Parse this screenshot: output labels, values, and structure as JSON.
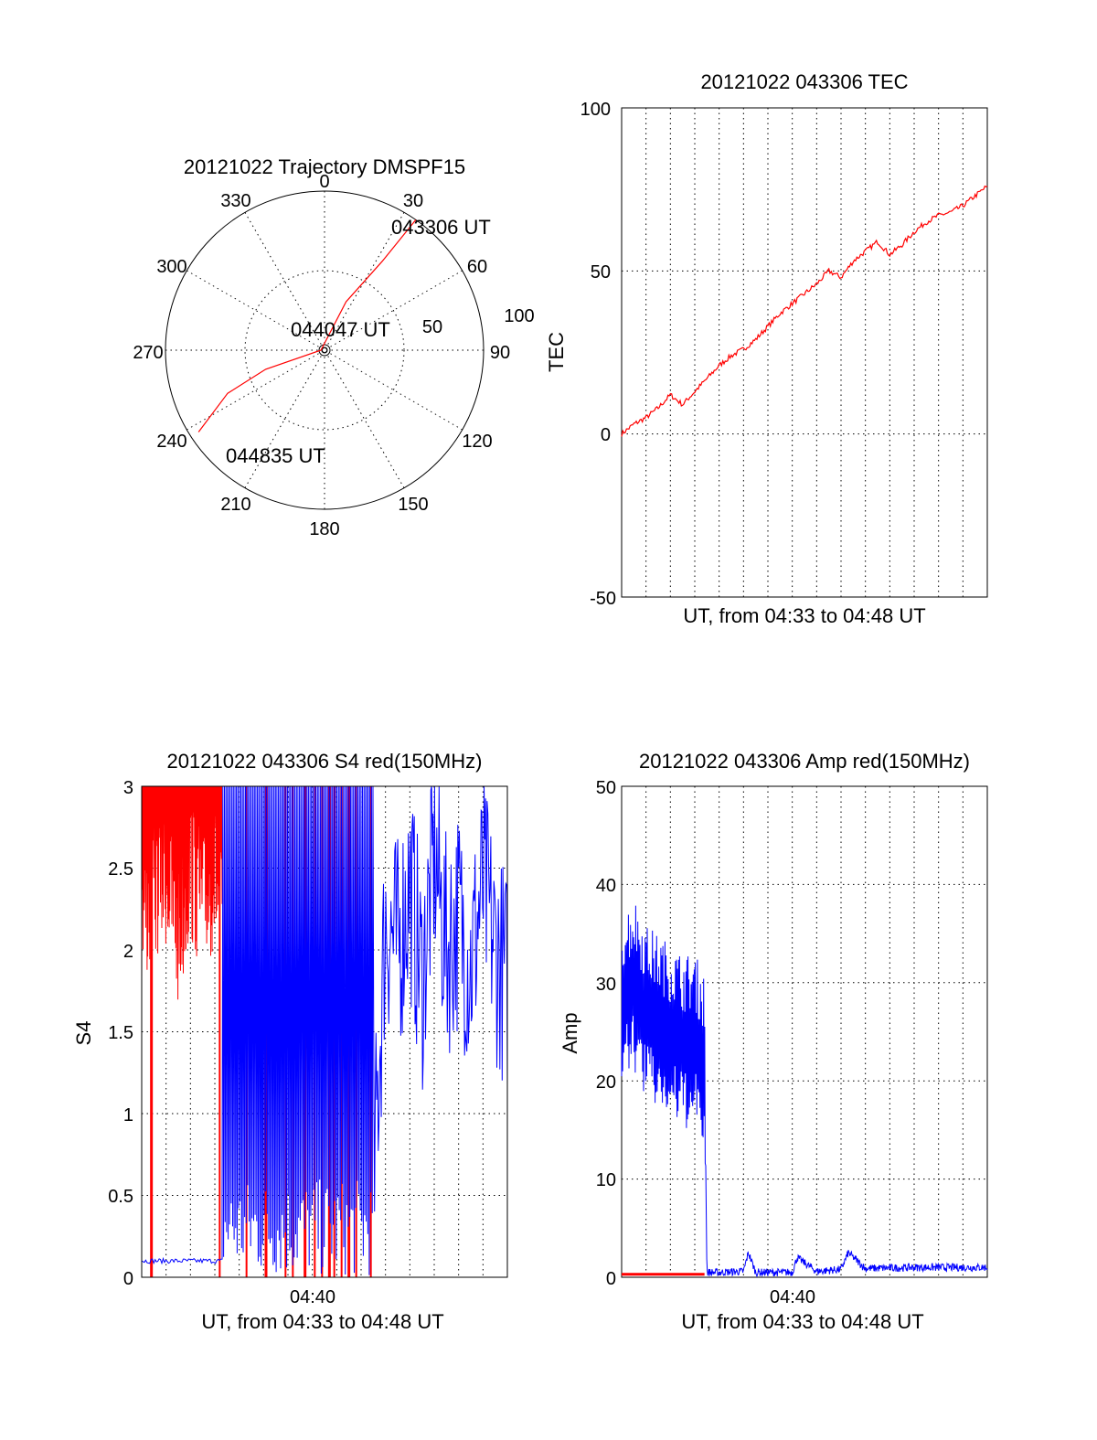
{
  "colors": {
    "red": "#ff0000",
    "blue": "#0000ff",
    "ink": "#000000"
  },
  "polar": {
    "title": "20121022 Trajectory DMSPF15",
    "azimuth_labels": [
      "0",
      "30",
      "60",
      "90",
      "120",
      "150",
      "180",
      "210",
      "240",
      "270",
      "300",
      "330"
    ],
    "elevation_labels": [
      "50",
      "100"
    ],
    "start_label": "043306 UT",
    "mid_label": "044047 UT",
    "end_label": "044835 UT"
  },
  "tec": {
    "title": "20121022 043306 TEC",
    "ylabel": "TEC",
    "xlabel": "UT, from 04:33 to 04:48 UT",
    "y_ticks": [
      "100",
      "50",
      "0",
      "-50"
    ]
  },
  "s4": {
    "title": "20121022 043306 S4 red(150MHz)",
    "ylabel": "S4",
    "xlabel": "UT, from 04:33 to 04:48 UT",
    "x_tick": "04:40",
    "y_ticks": [
      "3",
      "2.5",
      "2",
      "1.5",
      "1",
      "0.5",
      "0"
    ]
  },
  "amp": {
    "title": "20121022 043306 Amp red(150MHz)",
    "ylabel": "Amp",
    "xlabel": "UT, from 04:33 to 04:48 UT",
    "x_tick": "04:40",
    "y_ticks": [
      "50",
      "40",
      "30",
      "20",
      "10",
      "0"
    ]
  },
  "chart_data": [
    {
      "type": "line",
      "title": "20121022 Trajectory DMSPF15",
      "subtype": "polar",
      "r_axis": "elevation (90 at center, 0 at rim)",
      "series": [
        {
          "name": "trajectory",
          "color": "red",
          "points": [
            {
              "az": 35,
              "el": 0
            },
            {
              "az": 33,
              "el": 30
            },
            {
              "az": 24,
              "el": 60
            },
            {
              "az": 270,
              "el": 88
            },
            {
              "az": 252,
              "el": 55
            },
            {
              "az": 246,
              "el": 30
            },
            {
              "az": 237,
              "el": 5
            }
          ]
        }
      ]
    },
    {
      "type": "line",
      "title": "20121022 043306 TEC",
      "xlabel": "UT, from 04:33 to 04:48 UT",
      "ylabel": "TEC",
      "xlim": [
        0,
        15
      ],
      "ylim": [
        -50,
        100
      ],
      "series": [
        {
          "name": "TEC",
          "color": "red",
          "x": [
            0,
            0.5,
            1,
            1.5,
            2,
            2.5,
            3,
            3.5,
            4,
            4.5,
            5,
            5.5,
            6,
            6.5,
            7,
            7.5,
            8,
            8.5,
            9,
            9.5,
            10,
            10.5,
            11,
            11.5,
            12,
            12.5,
            13,
            13.5,
            14,
            14.5,
            15
          ],
          "y": [
            0,
            3,
            5,
            8,
            12,
            9,
            13,
            17,
            21,
            24,
            26,
            29,
            33,
            37,
            40,
            43,
            46,
            50,
            48,
            53,
            56,
            59,
            55,
            58,
            62,
            65,
            67,
            68,
            70,
            73,
            76
          ]
        }
      ]
    },
    {
      "type": "line",
      "title": "20121022 043306 S4 red(150MHz)",
      "xlabel": "UT, from 04:33 to 04:48 UT",
      "ylabel": "S4",
      "xlim": [
        0,
        15
      ],
      "ylim": [
        0,
        3
      ],
      "xticks": [
        {
          "value": 7,
          "label": "04:40"
        }
      ],
      "series": [
        {
          "name": "red",
          "color": "red",
          "x": [
            0,
            0.5,
            1,
            1.5,
            2,
            2.5,
            3,
            3.5,
            4,
            4.5,
            5,
            5.5,
            6,
            6.5,
            7,
            7.5,
            8,
            8.5,
            9,
            9.5
          ],
          "y": [
            2.6,
            2.8,
            2.9,
            2.5,
            2.95,
            2.7,
            2.9,
            2.4,
            2.85,
            2.6,
            2.9,
            2.8,
            3,
            0.2,
            3,
            0.2,
            3,
            0.1,
            3,
            0.1
          ]
        },
        {
          "name": "blue",
          "color": "blue",
          "x": [
            0,
            0.5,
            1,
            1.5,
            2,
            2.5,
            3,
            3.5,
            4,
            4.5,
            5,
            5.5,
            6,
            6.5,
            7,
            7.5,
            8,
            8.5,
            9,
            9.5,
            10,
            10.5,
            11,
            11.5,
            12,
            12.5,
            13,
            13.5,
            14,
            14.5,
            15
          ],
          "y": [
            0.1,
            0.1,
            0.11,
            0.1,
            0.11,
            0.1,
            0.1,
            1.0,
            2.5,
            0.1,
            3,
            0.1,
            3,
            0.5,
            2.5,
            0.1,
            3,
            0.3,
            3,
            0.5,
            2.2,
            2.0,
            2.4,
            1.8,
            2.6,
            2.0,
            2.2,
            1.9,
            2.4,
            2.0,
            1.8
          ]
        }
      ]
    },
    {
      "type": "line",
      "title": "20121022 043306 Amp red(150MHz)",
      "xlabel": "UT, from 04:33 to 04:48 UT",
      "ylabel": "Amp",
      "xlim": [
        0,
        15
      ],
      "ylim": [
        0,
        50
      ],
      "xticks": [
        {
          "value": 7,
          "label": "04:40"
        }
      ],
      "series": [
        {
          "name": "red",
          "color": "red",
          "x": [
            0,
            3.4
          ],
          "y": [
            0.3,
            0.3
          ]
        },
        {
          "name": "blue",
          "color": "blue",
          "x": [
            0,
            0.5,
            1,
            1.5,
            2,
            2.5,
            3,
            3.4,
            3.5,
            4,
            5,
            5.2,
            5.5,
            7,
            7.2,
            8,
            9,
            9.3,
            10,
            12,
            15
          ],
          "y": [
            28,
            30,
            27,
            26,
            25,
            24,
            24,
            22,
            0.5,
            0.5,
            0.6,
            2.5,
            0.5,
            0.5,
            2,
            0.6,
            0.8,
            2.5,
            0.9,
            1.0,
            1.0
          ]
        }
      ]
    }
  ]
}
